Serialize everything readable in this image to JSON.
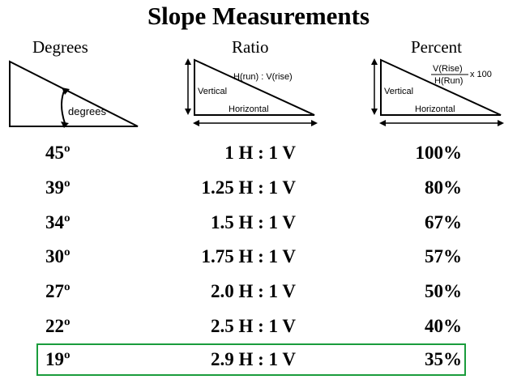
{
  "title": "Slope Measurements",
  "columns": {
    "degrees": "Degrees",
    "ratio": "Ratio",
    "percent": "Percent"
  },
  "diagrams": {
    "degrees": {
      "label": "degrees"
    },
    "ratio": {
      "vertical": "Vertical",
      "horizontal": "Horizontal",
      "formula": "H(run) : V(rise)"
    },
    "percent": {
      "vertical": "Vertical",
      "horizontal": "Horizontal",
      "numerator": "V(Rise)",
      "denominator": "H(Run)",
      "multiplier": "x 100"
    }
  },
  "rows": [
    {
      "degrees": "45º",
      "ratio": "1 H : 1 V",
      "percent": "100%"
    },
    {
      "degrees": "39º",
      "ratio": "1.25 H : 1 V",
      "percent": "80%"
    },
    {
      "degrees": "34º",
      "ratio": "1.5 H : 1 V",
      "percent": "67%"
    },
    {
      "degrees": "30º",
      "ratio": "1.75 H : 1 V",
      "percent": "57%"
    },
    {
      "degrees": "27º",
      "ratio": "2.0 H : 1 V",
      "percent": "50%"
    },
    {
      "degrees": "22º",
      "ratio": "2.5 H : 1 V",
      "percent": "40%"
    },
    {
      "degrees": "19º",
      "ratio": "2.9 H : 1 V",
      "percent": "35%"
    }
  ],
  "highlight_color": "#1a9c3c"
}
